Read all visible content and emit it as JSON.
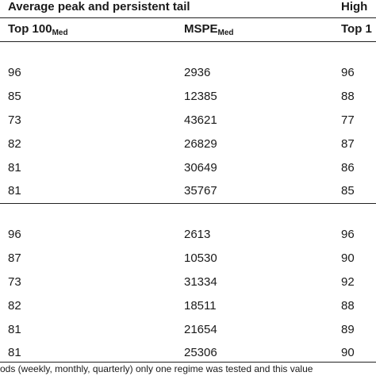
{
  "header": {
    "group_left": "Average peak and persistent tail",
    "group_right": "High",
    "col1": {
      "main": "Top 100",
      "sub": "Med"
    },
    "col2": {
      "main": "MSPE",
      "sub": "Med"
    },
    "col3": {
      "main": "Top 1",
      "sub": ""
    }
  },
  "section1": {
    "rows": [
      [
        "96",
        "2936",
        "96"
      ],
      [
        "85",
        "12385",
        "88"
      ],
      [
        "73",
        "43621",
        "77"
      ],
      [
        "82",
        "26829",
        "87"
      ],
      [
        "81",
        "30649",
        "86"
      ],
      [
        "81",
        "35767",
        "85"
      ]
    ]
  },
  "section2": {
    "rows": [
      [
        "96",
        "2613",
        "96"
      ],
      [
        "87",
        "10530",
        "90"
      ],
      [
        "73",
        "31334",
        "92"
      ],
      [
        "82",
        "18511",
        "88"
      ],
      [
        "81",
        "21654",
        "89"
      ],
      [
        "81",
        "25306",
        "90"
      ]
    ]
  },
  "footnote": "ods (weekly, monthly, quarterly) only one regime was tested and this value"
}
